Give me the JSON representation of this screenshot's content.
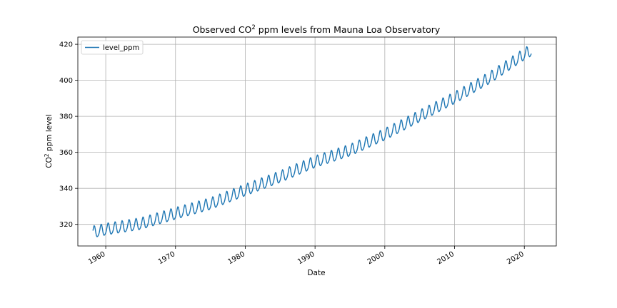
{
  "chart_data": {
    "type": "line",
    "title_main": "Observed CO",
    "title_sup": "2",
    "title_rest": " ppm levels from Mauna Loa Observatory",
    "xlabel": "Date",
    "ylabel_main": "CO",
    "ylabel_sup": "2",
    "ylabel_rest": " ppm level",
    "xlim": [
      "1956-01-01",
      "2024-08-01"
    ],
    "ylim": [
      308,
      424
    ],
    "grid": true,
    "legend_position": "top-left",
    "x_ticks": [
      "1960",
      "1970",
      "1980",
      "1990",
      "2000",
      "2010",
      "2020"
    ],
    "y_ticks": [
      "320",
      "340",
      "360",
      "380",
      "400",
      "420"
    ],
    "series": [
      {
        "name": "level_ppm",
        "color": "#1f77b4",
        "date_range": [
          "1958-03",
          "2021-01"
        ],
        "seasonal_amplitude_ppm": 3.2,
        "trend": [
          {
            "year": 1958,
            "value": 315.3
          },
          {
            "year": 1960,
            "value": 316.9
          },
          {
            "year": 1965,
            "value": 320.0
          },
          {
            "year": 1970,
            "value": 325.7
          },
          {
            "year": 1975,
            "value": 331.1
          },
          {
            "year": 1980,
            "value": 338.7
          },
          {
            "year": 1985,
            "value": 346.1
          },
          {
            "year": 1990,
            "value": 354.4
          },
          {
            "year": 1995,
            "value": 360.8
          },
          {
            "year": 2000,
            "value": 369.6
          },
          {
            "year": 2005,
            "value": 379.8
          },
          {
            "year": 2010,
            "value": 389.9
          },
          {
            "year": 2015,
            "value": 401.0
          },
          {
            "year": 2020,
            "value": 414.2
          },
          {
            "year": 2021,
            "value": 416.4
          }
        ]
      }
    ]
  }
}
